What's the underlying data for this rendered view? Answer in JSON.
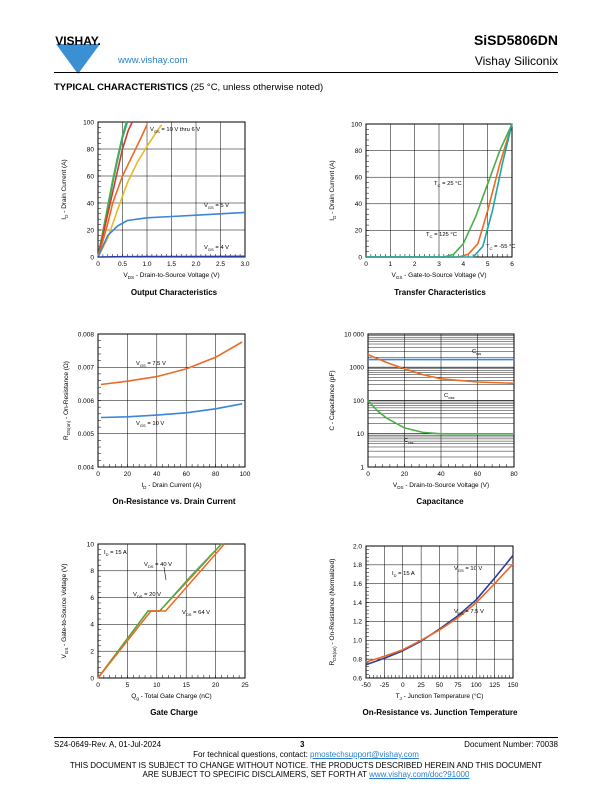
{
  "header": {
    "brand": "VISHAY.",
    "url": "www.vishay.com",
    "part_number": "SiSD5806DN",
    "company": "Vishay Siliconix"
  },
  "section": {
    "title": "TYPICAL CHARACTERISTICS",
    "note": "(25 °C, unless otherwise noted)"
  },
  "charts": {
    "c1": {
      "caption": "Output Characteristics",
      "ylabel_pre": "I",
      "ylabel_sub": "D",
      "ylabel_post": " - Drain Current (A)",
      "xlabel_pre": "V",
      "xlabel_sub": "DS",
      "xlabel_post": " - Drain-to-Source Voltage (V)",
      "xticks": [
        "0",
        "0.5",
        "1.0",
        "1.5",
        "2.0",
        "2.5",
        "3.0"
      ],
      "yticks": [
        "0",
        "20",
        "40",
        "60",
        "80",
        "100"
      ],
      "labels": [
        {
          "pre": "V",
          "sub": "GS",
          "post": " = 10 V thru 6 V"
        },
        {
          "pre": "V",
          "sub": "GS",
          "post": " = 5 V"
        },
        {
          "pre": "V",
          "sub": "GS",
          "post": " = 4 V"
        }
      ]
    },
    "c2": {
      "caption": "Transfer Characteristics",
      "ylabel_pre": "I",
      "ylabel_sub": "D",
      "ylabel_post": " - Drain Current (A)",
      "xlabel_pre": "V",
      "xlabel_sub": "GS",
      "xlabel_post": " - Gate-to-Source Voltage (V)",
      "xticks": [
        "0",
        "1",
        "2",
        "3",
        "4",
        "5",
        "6"
      ],
      "yticks": [
        "0",
        "20",
        "40",
        "60",
        "80",
        "100"
      ],
      "labels": [
        {
          "pre": "T",
          "sub": "C",
          "post": " = 25 °C"
        },
        {
          "pre": "T",
          "sub": "C",
          "post": " = 125 °C"
        },
        {
          "pre": "T",
          "sub": "C",
          "post": " = -55 °C"
        }
      ]
    },
    "c3": {
      "caption": "On-Resistance vs. Drain Current",
      "ylabel_pre": "R",
      "ylabel_sub": "DS(on)",
      "ylabel_post": " - On-Resistance (Ω)",
      "xlabel_pre": "I",
      "xlabel_sub": "D",
      "xlabel_post": " - Drain Current (A)",
      "xticks": [
        "0",
        "20",
        "40",
        "60",
        "80",
        "100"
      ],
      "yticks": [
        "0.004",
        "0.005",
        "0.006",
        "0.007",
        "0.008"
      ],
      "labels": [
        {
          "pre": "V",
          "sub": "GS",
          "post": " = 7.5 V"
        },
        {
          "pre": "V",
          "sub": "GS",
          "post": " = 10 V"
        }
      ]
    },
    "c4": {
      "caption": "Capacitance",
      "ylabel_pre": "C - Capacitance (pF)",
      "ylabel_sub": "",
      "ylabel_post": "",
      "xlabel_pre": "V",
      "xlabel_sub": "DS",
      "xlabel_post": " - Drain-to-Source Voltage (V)",
      "xticks": [
        "0",
        "20",
        "40",
        "60",
        "80"
      ],
      "yticks": [
        "1",
        "10",
        "100",
        "1000",
        "10 000"
      ],
      "labels": [
        {
          "pre": "C",
          "sub": "iss",
          "post": ""
        },
        {
          "pre": "C",
          "sub": "oss",
          "post": ""
        },
        {
          "pre": "C",
          "sub": "rss",
          "post": ""
        }
      ]
    },
    "c5": {
      "caption": "Gate Charge",
      "ylabel_pre": "V",
      "ylabel_sub": "GS",
      "ylabel_post": " - Gate-to-Source Voltage (V)",
      "xlabel_pre": "Q",
      "xlabel_sub": "g",
      "xlabel_post": " - Total Gate Charge (nC)",
      "xticks": [
        "0",
        "5",
        "10",
        "15",
        "20",
        "25"
      ],
      "yticks": [
        "0",
        "2",
        "4",
        "6",
        "8",
        "10"
      ],
      "labels": [
        {
          "pre": "I",
          "sub": "D",
          "post": " = 15 A"
        },
        {
          "pre": "V",
          "sub": "DS",
          "post": " = 40 V"
        },
        {
          "pre": "V",
          "sub": "DS",
          "post": " = 20 V"
        },
        {
          "pre": "V",
          "sub": "DS",
          "post": " = 64 V"
        }
      ]
    },
    "c6": {
      "caption": "On-Resistance vs. Junction Temperature",
      "ylabel_pre": "R",
      "ylabel_sub": "DS(on)",
      "ylabel_post": " - On-Resistance (Normalized)",
      "xlabel_pre": "T",
      "xlabel_sub": "J",
      "xlabel_post": " - Junction Temperature (°C)",
      "xticks": [
        "-50",
        "-25",
        "0",
        "25",
        "50",
        "75",
        "100",
        "125",
        "150"
      ],
      "yticks": [
        "0.6",
        "0.8",
        "1.0",
        "1.2",
        "1.4",
        "1.6",
        "1.8",
        "2.0"
      ],
      "labels": [
        {
          "pre": "I",
          "sub": "D",
          "post": " = 15 A"
        },
        {
          "pre": "V",
          "sub": "GS",
          "post": " = 10 V"
        },
        {
          "pre": "V",
          "sub": "GS",
          "post": " = 7.5 V"
        }
      ]
    }
  },
  "chart_data": [
    {
      "type": "line",
      "title": "Output Characteristics",
      "xlim": [
        0,
        3
      ],
      "ylim": [
        0,
        100
      ],
      "series": [
        {
          "name": "VGS = 10 V thru 6 V",
          "x": [
            0,
            0.1,
            0.2,
            0.3,
            0.4,
            0.5,
            0.6
          ],
          "y": [
            0,
            18,
            36,
            55,
            72,
            88,
            100
          ]
        },
        {
          "name": "VGS = 5 V",
          "x": [
            0,
            0.1,
            0.2,
            0.4,
            0.6,
            1.0,
            1.5,
            2.0,
            2.5,
            3.0
          ],
          "y": [
            0,
            8,
            16,
            23,
            27,
            29,
            30,
            31,
            32,
            33
          ]
        },
        {
          "name": "VGS = 4 V",
          "x": [
            0,
            0.5,
            1.0,
            2.0,
            3.0
          ],
          "y": [
            0,
            0.2,
            0.3,
            0.4,
            0.5
          ]
        }
      ]
    },
    {
      "type": "line",
      "title": "Transfer Characteristics",
      "xlim": [
        0,
        6
      ],
      "ylim": [
        0,
        100
      ],
      "series": [
        {
          "name": "TC = 25 °C",
          "x": [
            0,
            3.8,
            4.2,
            4.6,
            5.0,
            5.5,
            6.0
          ],
          "y": [
            0,
            0,
            2,
            10,
            35,
            70,
            100
          ]
        },
        {
          "name": "TC = 125 °C",
          "x": [
            0,
            3.2,
            3.6,
            4.0,
            4.5,
            5.0,
            5.5,
            6.0
          ],
          "y": [
            0,
            0,
            2,
            10,
            30,
            55,
            80,
            100
          ]
        },
        {
          "name": "TC = -55 °C",
          "x": [
            0,
            4.4,
            4.8,
            5.2,
            5.6,
            6.0
          ],
          "y": [
            0,
            0,
            8,
            35,
            70,
            100
          ]
        }
      ]
    },
    {
      "type": "line",
      "title": "On-Resistance vs. Drain Current",
      "xlim": [
        0,
        100
      ],
      "ylim": [
        0.004,
        0.008
      ],
      "series": [
        {
          "name": "VGS = 7.5 V",
          "x": [
            2,
            20,
            40,
            60,
            80,
            98
          ],
          "y": [
            0.00648,
            0.00658,
            0.00672,
            0.00695,
            0.0073,
            0.00776
          ]
        },
        {
          "name": "VGS = 10 V",
          "x": [
            2,
            20,
            40,
            60,
            80,
            98
          ],
          "y": [
            0.00549,
            0.00551,
            0.00556,
            0.00563,
            0.00575,
            0.0059
          ]
        }
      ]
    },
    {
      "type": "line",
      "title": "Capacitance",
      "xlim": [
        0,
        80
      ],
      "ylim": [
        1,
        10000
      ],
      "yscale": "log",
      "series": [
        {
          "name": "Ciss",
          "x": [
            0,
            10,
            20,
            40,
            60,
            80
          ],
          "y": [
            1700,
            1700,
            1700,
            1700,
            1700,
            1700
          ]
        },
        {
          "name": "Coss",
          "x": [
            0,
            10,
            20,
            30,
            40,
            60,
            80
          ],
          "y": [
            2400,
            1400,
            900,
            600,
            450,
            360,
            330
          ]
        },
        {
          "name": "Crss",
          "x": [
            0,
            5,
            10,
            20,
            30,
            40,
            60,
            80
          ],
          "y": [
            100,
            50,
            30,
            15,
            11,
            10,
            10,
            10
          ]
        }
      ]
    },
    {
      "type": "line",
      "title": "Gate Charge",
      "xlim": [
        0,
        25
      ],
      "ylim": [
        0,
        10
      ],
      "series": [
        {
          "name": "VDS = 20 V",
          "x": [
            0,
            8.5,
            10.5,
            16,
            21
          ],
          "y": [
            0,
            5,
            5,
            7.6,
            10
          ]
        },
        {
          "name": "VDS = 40 V",
          "x": [
            0,
            8.5,
            10.5,
            16,
            21
          ],
          "y": [
            0,
            5,
            5,
            7.7,
            10
          ]
        },
        {
          "name": "VDS = 64 V",
          "x": [
            0,
            9,
            11.5,
            16.5,
            21.5
          ],
          "y": [
            0,
            5,
            5,
            7.5,
            10
          ]
        }
      ]
    },
    {
      "type": "line",
      "title": "On-Resistance vs. Junction Temperature",
      "xlim": [
        -50,
        150
      ],
      "ylim": [
        0.6,
        2.0
      ],
      "series": [
        {
          "name": "VGS = 10 V",
          "x": [
            -50,
            -25,
            0,
            25,
            50,
            75,
            100,
            125,
            150
          ],
          "y": [
            0.74,
            0.81,
            0.89,
            0.99,
            1.12,
            1.26,
            1.43,
            1.66,
            1.9
          ]
        },
        {
          "name": "VGS = 7.5 V",
          "x": [
            -50,
            -25,
            0,
            25,
            50,
            75,
            100,
            125,
            150
          ],
          "y": [
            0.77,
            0.83,
            0.9,
            1.0,
            1.11,
            1.24,
            1.4,
            1.6,
            1.81
          ]
        }
      ]
    }
  ],
  "footer": {
    "rev": "S24-0649-Rev. A, 01-Jul-2024",
    "page": "3",
    "doc_number": "Document Number: 70038",
    "contact_pre": "For technical questions, contact: ",
    "contact_email": "pmostechsupport@vishay.com",
    "disclaimer_1": "THIS DOCUMENT IS SUBJECT TO CHANGE WITHOUT NOTICE. THE PRODUCTS DESCRIBED HEREIN AND THIS DOCUMENT",
    "disclaimer_2_pre": "ARE SUBJECT TO SPECIFIC DISCLAIMERS, SET FORTH AT ",
    "disclaimer_url": "www.vishay.com/doc?91000"
  },
  "colors": {
    "accent": "#2a7fc9",
    "blue": "#3a86d8",
    "orange": "#ec6a23",
    "teal": "#22a5a8",
    "green": "#4aae49",
    "navy": "#2a3ea0",
    "gold": "#e8b92a",
    "red": "#d23a2a",
    "logo": "#3b8fd3"
  }
}
